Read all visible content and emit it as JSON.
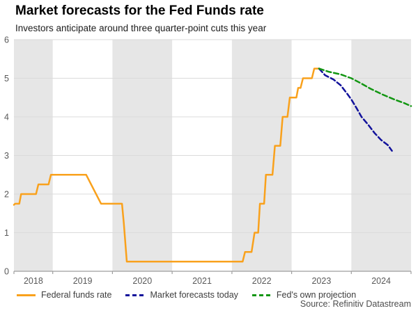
{
  "header": {
    "title": "Market forecasts for the Fed Funds rate",
    "subtitle": "Investors anticipate around three quarter-point cuts this year"
  },
  "source": "Source: Refinitiv Datastream",
  "legend": [
    {
      "label": "Federal funds rate",
      "color": "#F9A11C",
      "style": "solid"
    },
    {
      "label": "Market forecasts today",
      "color": "#12129B",
      "style": "dashed"
    },
    {
      "label": "Fed's own projection",
      "color": "#129612",
      "style": "dashed"
    }
  ],
  "chart_data": {
    "type": "line",
    "title": "Market forecasts for the Fed Funds rate",
    "subtitle": "Investors anticipate around three quarter-point cuts this year",
    "xlabel": "",
    "ylabel": "",
    "x_domain": [
      2018.35,
      2025.0
    ],
    "y_domain": [
      0,
      6
    ],
    "y_ticks": [
      0,
      1,
      2,
      3,
      4,
      5,
      6
    ],
    "x_year_labels": [
      2018,
      2019,
      2020,
      2021,
      2022,
      2023,
      2024
    ],
    "shaded_years": [
      2018,
      2020,
      2022,
      2024
    ],
    "grid": true,
    "legend_position": "bottom",
    "colors": {
      "band": "#E6E6E6",
      "grid": "#DBDBDB",
      "axis": "#9E9E9E",
      "tick_label": "#595959"
    },
    "series": [
      {
        "name": "Federal funds rate",
        "color": "#F9A11C",
        "dash": null,
        "points": [
          [
            2018.35,
            1.72
          ],
          [
            2018.37,
            1.75
          ],
          [
            2018.44,
            1.75
          ],
          [
            2018.47,
            2.0
          ],
          [
            2018.72,
            2.0
          ],
          [
            2018.76,
            2.25
          ],
          [
            2018.93,
            2.25
          ],
          [
            2018.97,
            2.5
          ],
          [
            2019.56,
            2.5
          ],
          [
            2019.81,
            1.75
          ],
          [
            2020.16,
            1.75
          ],
          [
            2020.19,
            1.25
          ],
          [
            2020.24,
            0.25
          ],
          [
            2022.18,
            0.25
          ],
          [
            2022.22,
            0.5
          ],
          [
            2022.33,
            0.5
          ],
          [
            2022.38,
            1.0
          ],
          [
            2022.44,
            1.0
          ],
          [
            2022.47,
            1.75
          ],
          [
            2022.54,
            1.75
          ],
          [
            2022.57,
            2.5
          ],
          [
            2022.68,
            2.5
          ],
          [
            2022.72,
            3.25
          ],
          [
            2022.81,
            3.25
          ],
          [
            2022.85,
            4.0
          ],
          [
            2022.93,
            4.0
          ],
          [
            2022.97,
            4.5
          ],
          [
            2023.08,
            4.5
          ],
          [
            2023.11,
            4.75
          ],
          [
            2023.15,
            4.75
          ],
          [
            2023.19,
            5.0
          ],
          [
            2023.34,
            5.0
          ],
          [
            2023.38,
            5.25
          ],
          [
            2023.46,
            5.25
          ]
        ]
      },
      {
        "name": "Market forecasts today",
        "color": "#12129B",
        "dash": "7 4",
        "points": [
          [
            2023.46,
            5.25
          ],
          [
            2023.56,
            5.08
          ],
          [
            2023.7,
            4.97
          ],
          [
            2023.82,
            4.82
          ],
          [
            2023.93,
            4.6
          ],
          [
            2024.0,
            4.45
          ],
          [
            2024.09,
            4.22
          ],
          [
            2024.17,
            4.0
          ],
          [
            2024.28,
            3.8
          ],
          [
            2024.39,
            3.58
          ],
          [
            2024.5,
            3.4
          ],
          [
            2024.61,
            3.27
          ],
          [
            2024.68,
            3.12
          ]
        ]
      },
      {
        "name": "Fed's own projection",
        "color": "#129612",
        "dash": "7 4",
        "points": [
          [
            2023.46,
            5.25
          ],
          [
            2023.62,
            5.17
          ],
          [
            2023.82,
            5.1
          ],
          [
            2024.0,
            5.0
          ],
          [
            2024.16,
            4.87
          ],
          [
            2024.32,
            4.73
          ],
          [
            2024.52,
            4.58
          ],
          [
            2024.72,
            4.45
          ],
          [
            2024.88,
            4.36
          ],
          [
            2025.0,
            4.28
          ]
        ]
      }
    ]
  }
}
